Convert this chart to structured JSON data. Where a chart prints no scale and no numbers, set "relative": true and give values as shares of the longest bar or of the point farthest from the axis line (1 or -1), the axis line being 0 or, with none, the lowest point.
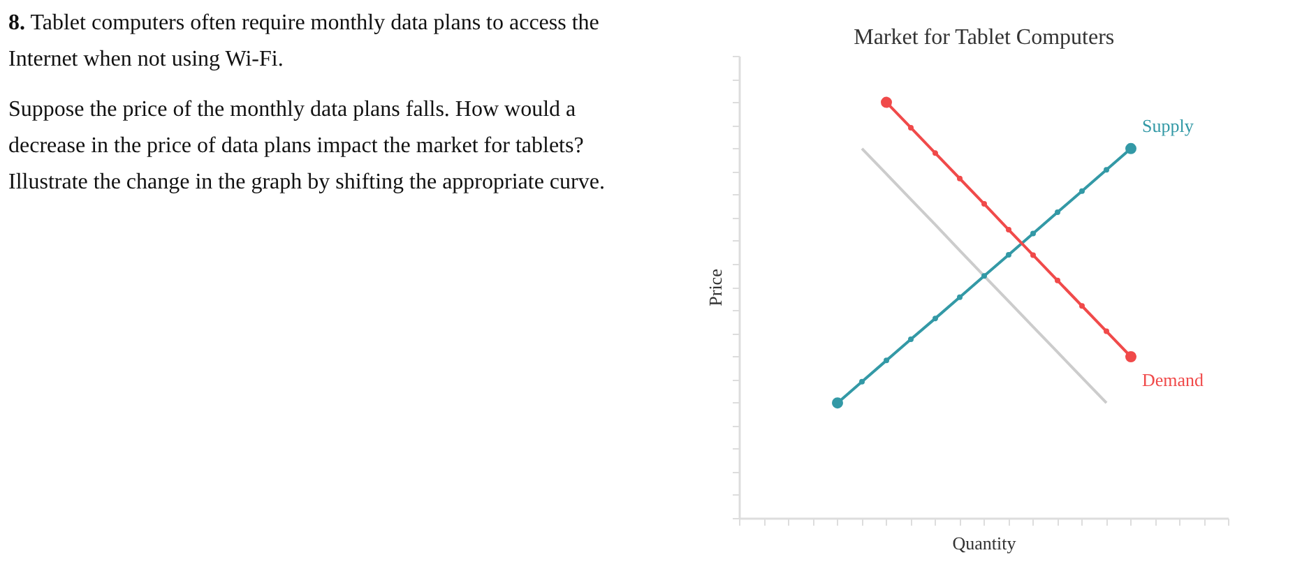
{
  "chart_data": {
    "type": "line",
    "title": "Market for Tablet Computers",
    "xlabel": "Quantity",
    "ylabel": "Price",
    "relative": true,
    "tick_labels": false,
    "annotations": [
      "8. Tablet computers often require monthly data plans to access the Internet when not using Wi-Fi.",
      "Suppose the price of the monthly data plans falls. How would a decrease in the price of data plans impact the market for tablets? Illustrate the change in the graph by shifting the appropriate curve."
    ],
    "categories": [
      null,
      null,
      null,
      null,
      null,
      null,
      null,
      null,
      null,
      null,
      null,
      null,
      null,
      null,
      null,
      null,
      null,
      null,
      null,
      null,
      null
    ],
    "series": [
      {
        "color": "#cccccc",
        "marker": "none",
        "values": [
          null,
          null,
          null,
          null,
          null,
          0.889,
          0.828,
          0.767,
          0.706,
          0.644,
          0.583,
          0.522,
          0.461,
          0.4,
          0.339,
          0.278,
          null,
          null,
          null,
          null,
          null
        ]
      },
      {
        "name": "Supply",
        "color": "#3399a6",
        "marker": "circle",
        "values": [
          null,
          null,
          null,
          null,
          0.278,
          0.329,
          0.38,
          0.431,
          0.481,
          0.532,
          0.583,
          0.634,
          0.685,
          0.736,
          0.787,
          0.838,
          0.889,
          null,
          null,
          null,
          null
        ]
      },
      {
        "name": "Demand",
        "color": "#f04a4a",
        "marker": "circle",
        "values": [
          null,
          null,
          null,
          null,
          null,
          null,
          1,
          0.939,
          0.878,
          0.817,
          0.756,
          0.694,
          0.633,
          0.572,
          0.511,
          0.45,
          0.389,
          null,
          null,
          null,
          null
        ]
      }
    ]
  }
}
